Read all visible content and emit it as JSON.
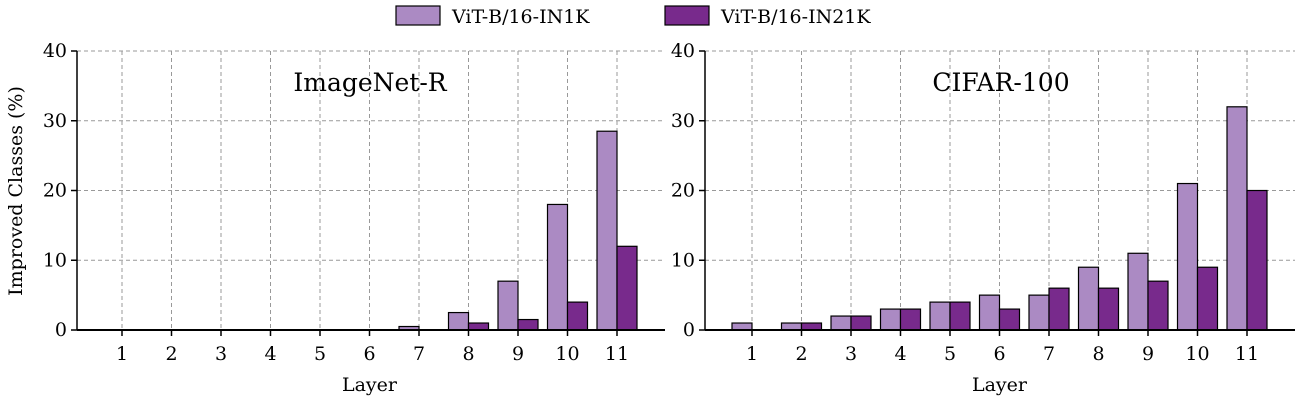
{
  "legend": {
    "items": [
      {
        "label": "ViT-B/16-IN1K",
        "color": "#ab8ac3"
      },
      {
        "label": "ViT-B/16-IN21K",
        "color": "#782a8c"
      }
    ]
  },
  "chart_data": [
    {
      "type": "bar",
      "title": "ImageNet-R",
      "xlabel": "Layer",
      "ylabel": "Improved Classes (%)",
      "ylim": [
        0,
        40
      ],
      "yticks": [
        0,
        10,
        20,
        30,
        40
      ],
      "grid": true,
      "legend_position": "top-center",
      "categories": [
        "1",
        "2",
        "3",
        "4",
        "5",
        "6",
        "7",
        "8",
        "9",
        "10",
        "11"
      ],
      "series": [
        {
          "name": "ViT-B/16-IN1K",
          "color": "#ab8ac3",
          "values": [
            0,
            0,
            0,
            0,
            0,
            0,
            0.5,
            2.5,
            7,
            18,
            28.5
          ]
        },
        {
          "name": "ViT-B/16-IN21K",
          "color": "#782a8c",
          "values": [
            0,
            0,
            0,
            0,
            0,
            0,
            0,
            1,
            1.5,
            4,
            12
          ]
        }
      ]
    },
    {
      "type": "bar",
      "title": "CIFAR-100",
      "xlabel": "Layer",
      "ylabel": "",
      "ylim": [
        0,
        40
      ],
      "yticks": [
        0,
        10,
        20,
        30,
        40
      ],
      "grid": true,
      "categories": [
        "1",
        "2",
        "3",
        "4",
        "5",
        "6",
        "7",
        "8",
        "9",
        "10",
        "11"
      ],
      "series": [
        {
          "name": "ViT-B/16-IN1K",
          "color": "#ab8ac3",
          "values": [
            1,
            1,
            2,
            3,
            4,
            5,
            5,
            9,
            11,
            21,
            32
          ]
        },
        {
          "name": "ViT-B/16-IN21K",
          "color": "#782a8c",
          "values": [
            0,
            1,
            2,
            3,
            4,
            3,
            6,
            6,
            7,
            9,
            20
          ]
        }
      ]
    }
  ]
}
